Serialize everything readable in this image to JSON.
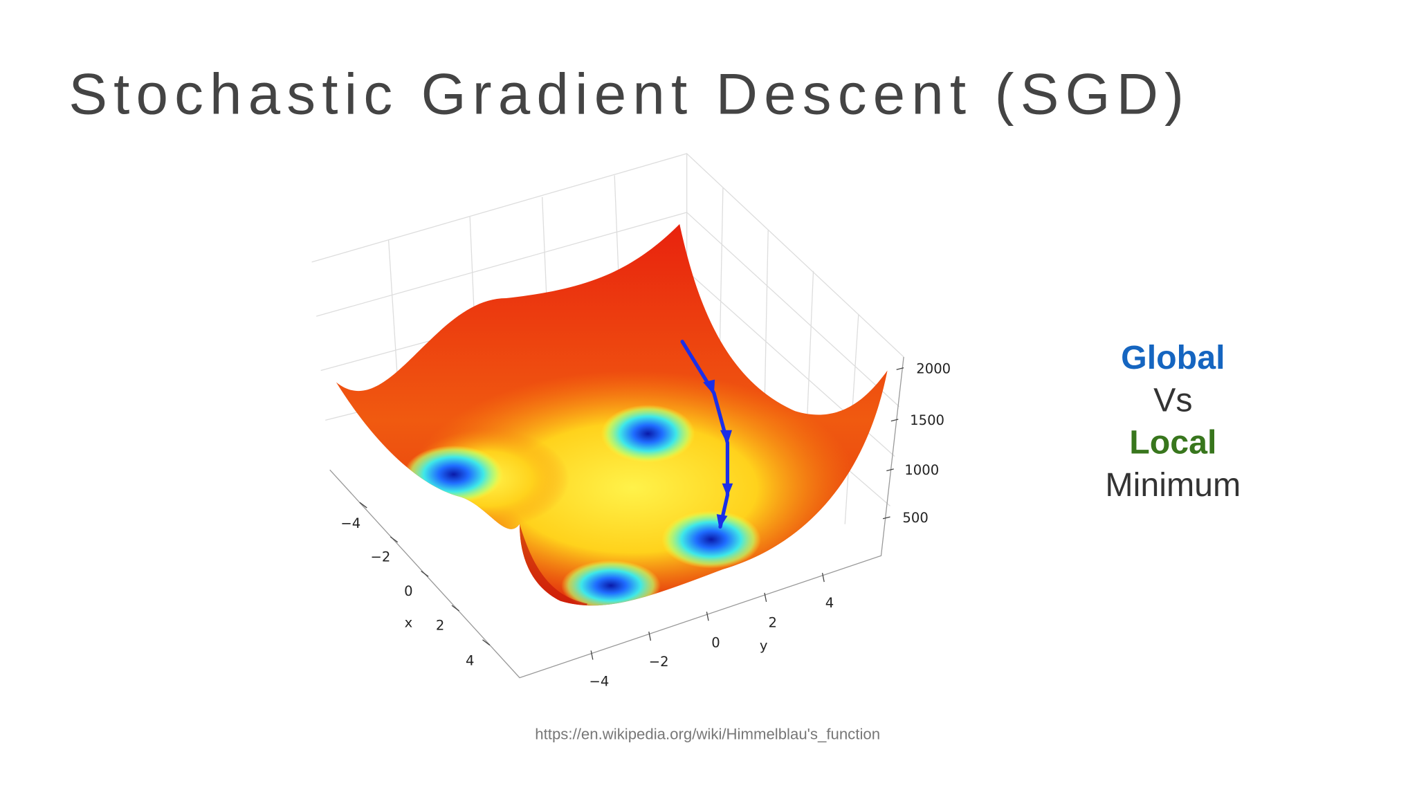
{
  "title": "Stochastic Gradient Descent (SGD)",
  "figure": {
    "x_axis": {
      "label": "x",
      "ticks": [
        "−4",
        "−2",
        "0",
        "2",
        "4"
      ]
    },
    "y_axis": {
      "label": "y",
      "ticks": [
        "−4",
        "−2",
        "0",
        "2",
        "4"
      ]
    },
    "z_axis": {
      "ticks": [
        "500",
        "1000",
        "1500",
        "2000"
      ]
    },
    "source": "https://en.wikipedia.org/wiki/Himmelblau's_function"
  },
  "sidebar": {
    "lines": [
      {
        "text": "Global",
        "color": "#1565c0",
        "bold": true
      },
      {
        "text": "Vs",
        "color": "#333333",
        "bold": false
      },
      {
        "text": "Local",
        "color": "#38761d",
        "bold": true
      },
      {
        "text": "Minimum",
        "color": "#333333",
        "bold": false
      }
    ]
  }
}
